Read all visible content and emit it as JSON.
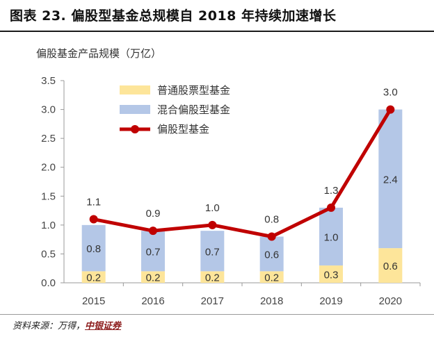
{
  "header": {
    "title": "图表 23. 偏股型基金总规模自 2018 年持续加速增长",
    "unit_label": "偏股基金产品规模（万亿）"
  },
  "footer": {
    "source_prefix": "资料来源：万得，",
    "source_org": "中银证券"
  },
  "colors": {
    "stock_fund": "#fde59a",
    "hybrid_fund": "#b4c7e7",
    "equity_line": "#c00000",
    "axis": "#999999"
  },
  "chart_data": {
    "type": "bar",
    "stacked": true,
    "categories": [
      "2015",
      "2016",
      "2017",
      "2018",
      "2019",
      "2020"
    ],
    "series": [
      {
        "name": "普通股票型基金",
        "type": "bar",
        "values": [
          0.2,
          0.2,
          0.2,
          0.2,
          0.3,
          0.6
        ],
        "color": "#fde59a"
      },
      {
        "name": "混合偏股型基金",
        "type": "bar",
        "values": [
          0.8,
          0.7,
          0.7,
          0.6,
          1.0,
          2.4
        ],
        "color": "#b4c7e7"
      },
      {
        "name": "偏股型基金",
        "type": "line",
        "values": [
          1.1,
          0.9,
          1.0,
          0.8,
          1.3,
          3.0
        ],
        "color": "#c00000"
      }
    ],
    "ylim": [
      0,
      3.5
    ],
    "yticks": [
      "0.0",
      "0.5",
      "1.0",
      "1.5",
      "2.0",
      "2.5",
      "3.0",
      "3.5"
    ],
    "ylabel": "偏股基金产品规模（万亿）",
    "grid": false,
    "legend_position": "top-left"
  }
}
